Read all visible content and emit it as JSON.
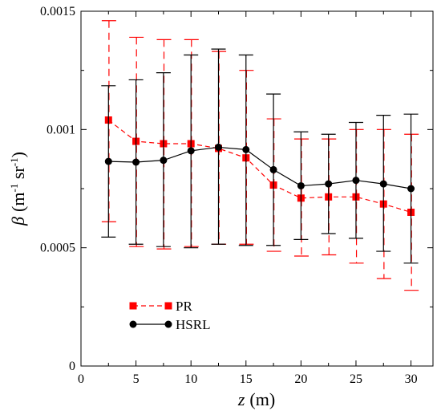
{
  "chart_data": {
    "type": "line",
    "title": "",
    "xlabel": {
      "symbol": "z",
      "unit": "(m)"
    },
    "ylabel": {
      "symbol": "β",
      "unit_open": "(m",
      "sup1": "-1",
      "mid": " sr",
      "sup2": "-1",
      "unit_close": ")"
    },
    "xlim": [
      0,
      32
    ],
    "ylim": [
      0,
      0.0015
    ],
    "xticks": [
      0,
      5,
      10,
      15,
      20,
      25,
      30
    ],
    "xtick_labels": [
      "0",
      "5",
      "10",
      "15",
      "20",
      "25",
      "30"
    ],
    "yticks": [
      0,
      0.0005,
      0.001,
      0.0015
    ],
    "ytick_labels": [
      "0",
      "0.0005",
      "0.001",
      "0.0015"
    ],
    "grid": false,
    "legend_position": "bottom-left",
    "x": [
      2.5,
      5,
      7.5,
      10,
      12.5,
      15,
      17.5,
      20,
      22.5,
      25,
      27.5,
      30
    ],
    "series": [
      {
        "name": "PR",
        "color": "#ff0000",
        "line_style": "dashed",
        "marker": "square",
        "values": [
          0.00104,
          0.00095,
          0.00094,
          0.00094,
          0.00092,
          0.00088,
          0.000765,
          0.00071,
          0.000715,
          0.000715,
          0.000685,
          0.00065
        ],
        "err_upper": [
          0.00146,
          0.00139,
          0.00138,
          0.00138,
          0.00133,
          0.00125,
          0.001045,
          0.00096,
          0.00096,
          0.001,
          0.001,
          0.00098
        ],
        "err_lower": [
          0.00061,
          0.000505,
          0.000495,
          0.000505,
          0.000515,
          0.000515,
          0.000485,
          0.000465,
          0.00047,
          0.000435,
          0.00037,
          0.00032
        ]
      },
      {
        "name": "HSRL",
        "color": "#000000",
        "line_style": "solid",
        "marker": "circle",
        "values": [
          0.000865,
          0.000862,
          0.00087,
          0.00091,
          0.000925,
          0.000915,
          0.00083,
          0.000762,
          0.00077,
          0.000785,
          0.00077,
          0.00075
        ],
        "err_upper": [
          0.001185,
          0.00121,
          0.00124,
          0.001315,
          0.00134,
          0.001315,
          0.00115,
          0.00099,
          0.00098,
          0.00103,
          0.00106,
          0.001065
        ],
        "err_lower": [
          0.000545,
          0.000515,
          0.000505,
          0.0005,
          0.000515,
          0.00051,
          0.00051,
          0.000535,
          0.00056,
          0.00054,
          0.000485,
          0.000435
        ]
      }
    ]
  }
}
